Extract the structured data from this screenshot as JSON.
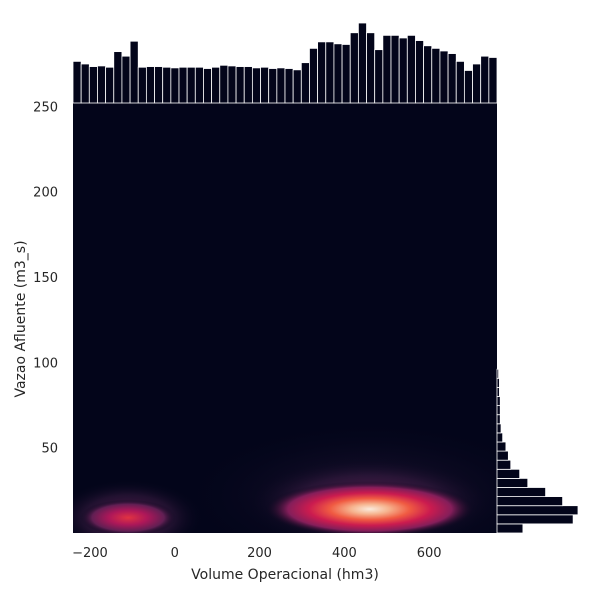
{
  "chart_data": {
    "type": "heatmap",
    "subtype": "kde-jointplot-with-marginal-histograms",
    "title": "",
    "xlabel": "Volume Operacional (hm3)",
    "ylabel": "Vazao Afluente (m3_s)",
    "xlim": [
      -240,
      760
    ],
    "ylim": [
      0,
      252
    ],
    "x_ticks": [
      -200,
      0,
      200,
      400,
      600
    ],
    "y_ticks": [
      50,
      100,
      150,
      200,
      250
    ],
    "x_tick_labels": [
      "−200",
      "0",
      "200",
      "400",
      "600"
    ],
    "y_tick_labels": [
      "50",
      "100",
      "150",
      "200",
      "250"
    ],
    "grid": false,
    "colormap": "rocket",
    "background_color": "#03051a",
    "bar_color": "#03051a",
    "density_peaks": [
      {
        "x": 460,
        "y": 14,
        "relative_density": 1.0
      },
      {
        "x": -110,
        "y": 9,
        "relative_density": 0.55
      }
    ],
    "marginal_x_hist": {
      "range": [
        -240,
        760
      ],
      "relative_heights": [
        0.64,
        0.6,
        0.56,
        0.57,
        0.55,
        0.79,
        0.72,
        0.95,
        0.55,
        0.56,
        0.56,
        0.55,
        0.54,
        0.55,
        0.55,
        0.55,
        0.53,
        0.55,
        0.58,
        0.57,
        0.56,
        0.56,
        0.54,
        0.55,
        0.53,
        0.54,
        0.53,
        0.51,
        0.62,
        0.84,
        0.94,
        0.94,
        0.91,
        0.9,
        1.08,
        1.23,
        1.08,
        0.82,
        1.04,
        1.04,
        1.0,
        1.04,
        0.96,
        0.88,
        0.84,
        0.8,
        0.76,
        0.64,
        0.5,
        0.6,
        0.72,
        0.7
      ]
    },
    "marginal_y_hist": {
      "range": [
        0,
        96
      ],
      "relative_widths": [
        0.32,
        0.94,
        1.0,
        0.81,
        0.6,
        0.38,
        0.28,
        0.17,
        0.14,
        0.11,
        0.07,
        0.05,
        0.04,
        0.04,
        0.04,
        0.03,
        0.03,
        0.02
      ]
    }
  }
}
